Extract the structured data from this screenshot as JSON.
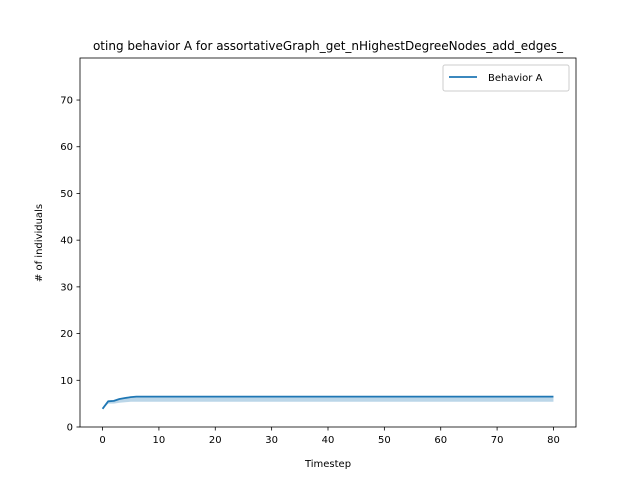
{
  "chart_data": {
    "type": "line",
    "title": "oting behavior A for assortativeGraph_get_nHighestDegreeNodes_add_edges_",
    "xlabel": "Timestep",
    "ylabel": "# of individuals",
    "xlim": [
      -4,
      84
    ],
    "ylim": [
      0,
      79
    ],
    "xticks": [
      0,
      10,
      20,
      30,
      40,
      50,
      60,
      70,
      80
    ],
    "yticks": [
      0,
      10,
      20,
      30,
      40,
      50,
      60,
      70
    ],
    "grid": false,
    "legend_position": "top-right",
    "series": [
      {
        "name": "Behavior A",
        "color": "#1f77b4",
        "x": [
          0,
          1,
          2,
          3,
          4,
          5,
          6,
          7,
          8,
          10,
          20,
          30,
          40,
          50,
          60,
          70,
          80
        ],
        "y": [
          3.9,
          5.5,
          5.6,
          6.0,
          6.2,
          6.4,
          6.5,
          6.5,
          6.5,
          6.5,
          6.5,
          6.5,
          6.5,
          6.5,
          6.5,
          6.5,
          6.5
        ],
        "band_lower": [
          3.9,
          5.0,
          5.0,
          5.2,
          5.3,
          5.4,
          5.4,
          5.4,
          5.4,
          5.4,
          5.4,
          5.4,
          5.4,
          5.4,
          5.4,
          5.4,
          5.4
        ],
        "band_upper": [
          3.9,
          5.5,
          5.6,
          6.0,
          6.2,
          6.3,
          6.4,
          6.4,
          6.4,
          6.4,
          6.4,
          6.4,
          6.4,
          6.4,
          6.4,
          6.4,
          6.4
        ]
      }
    ]
  }
}
